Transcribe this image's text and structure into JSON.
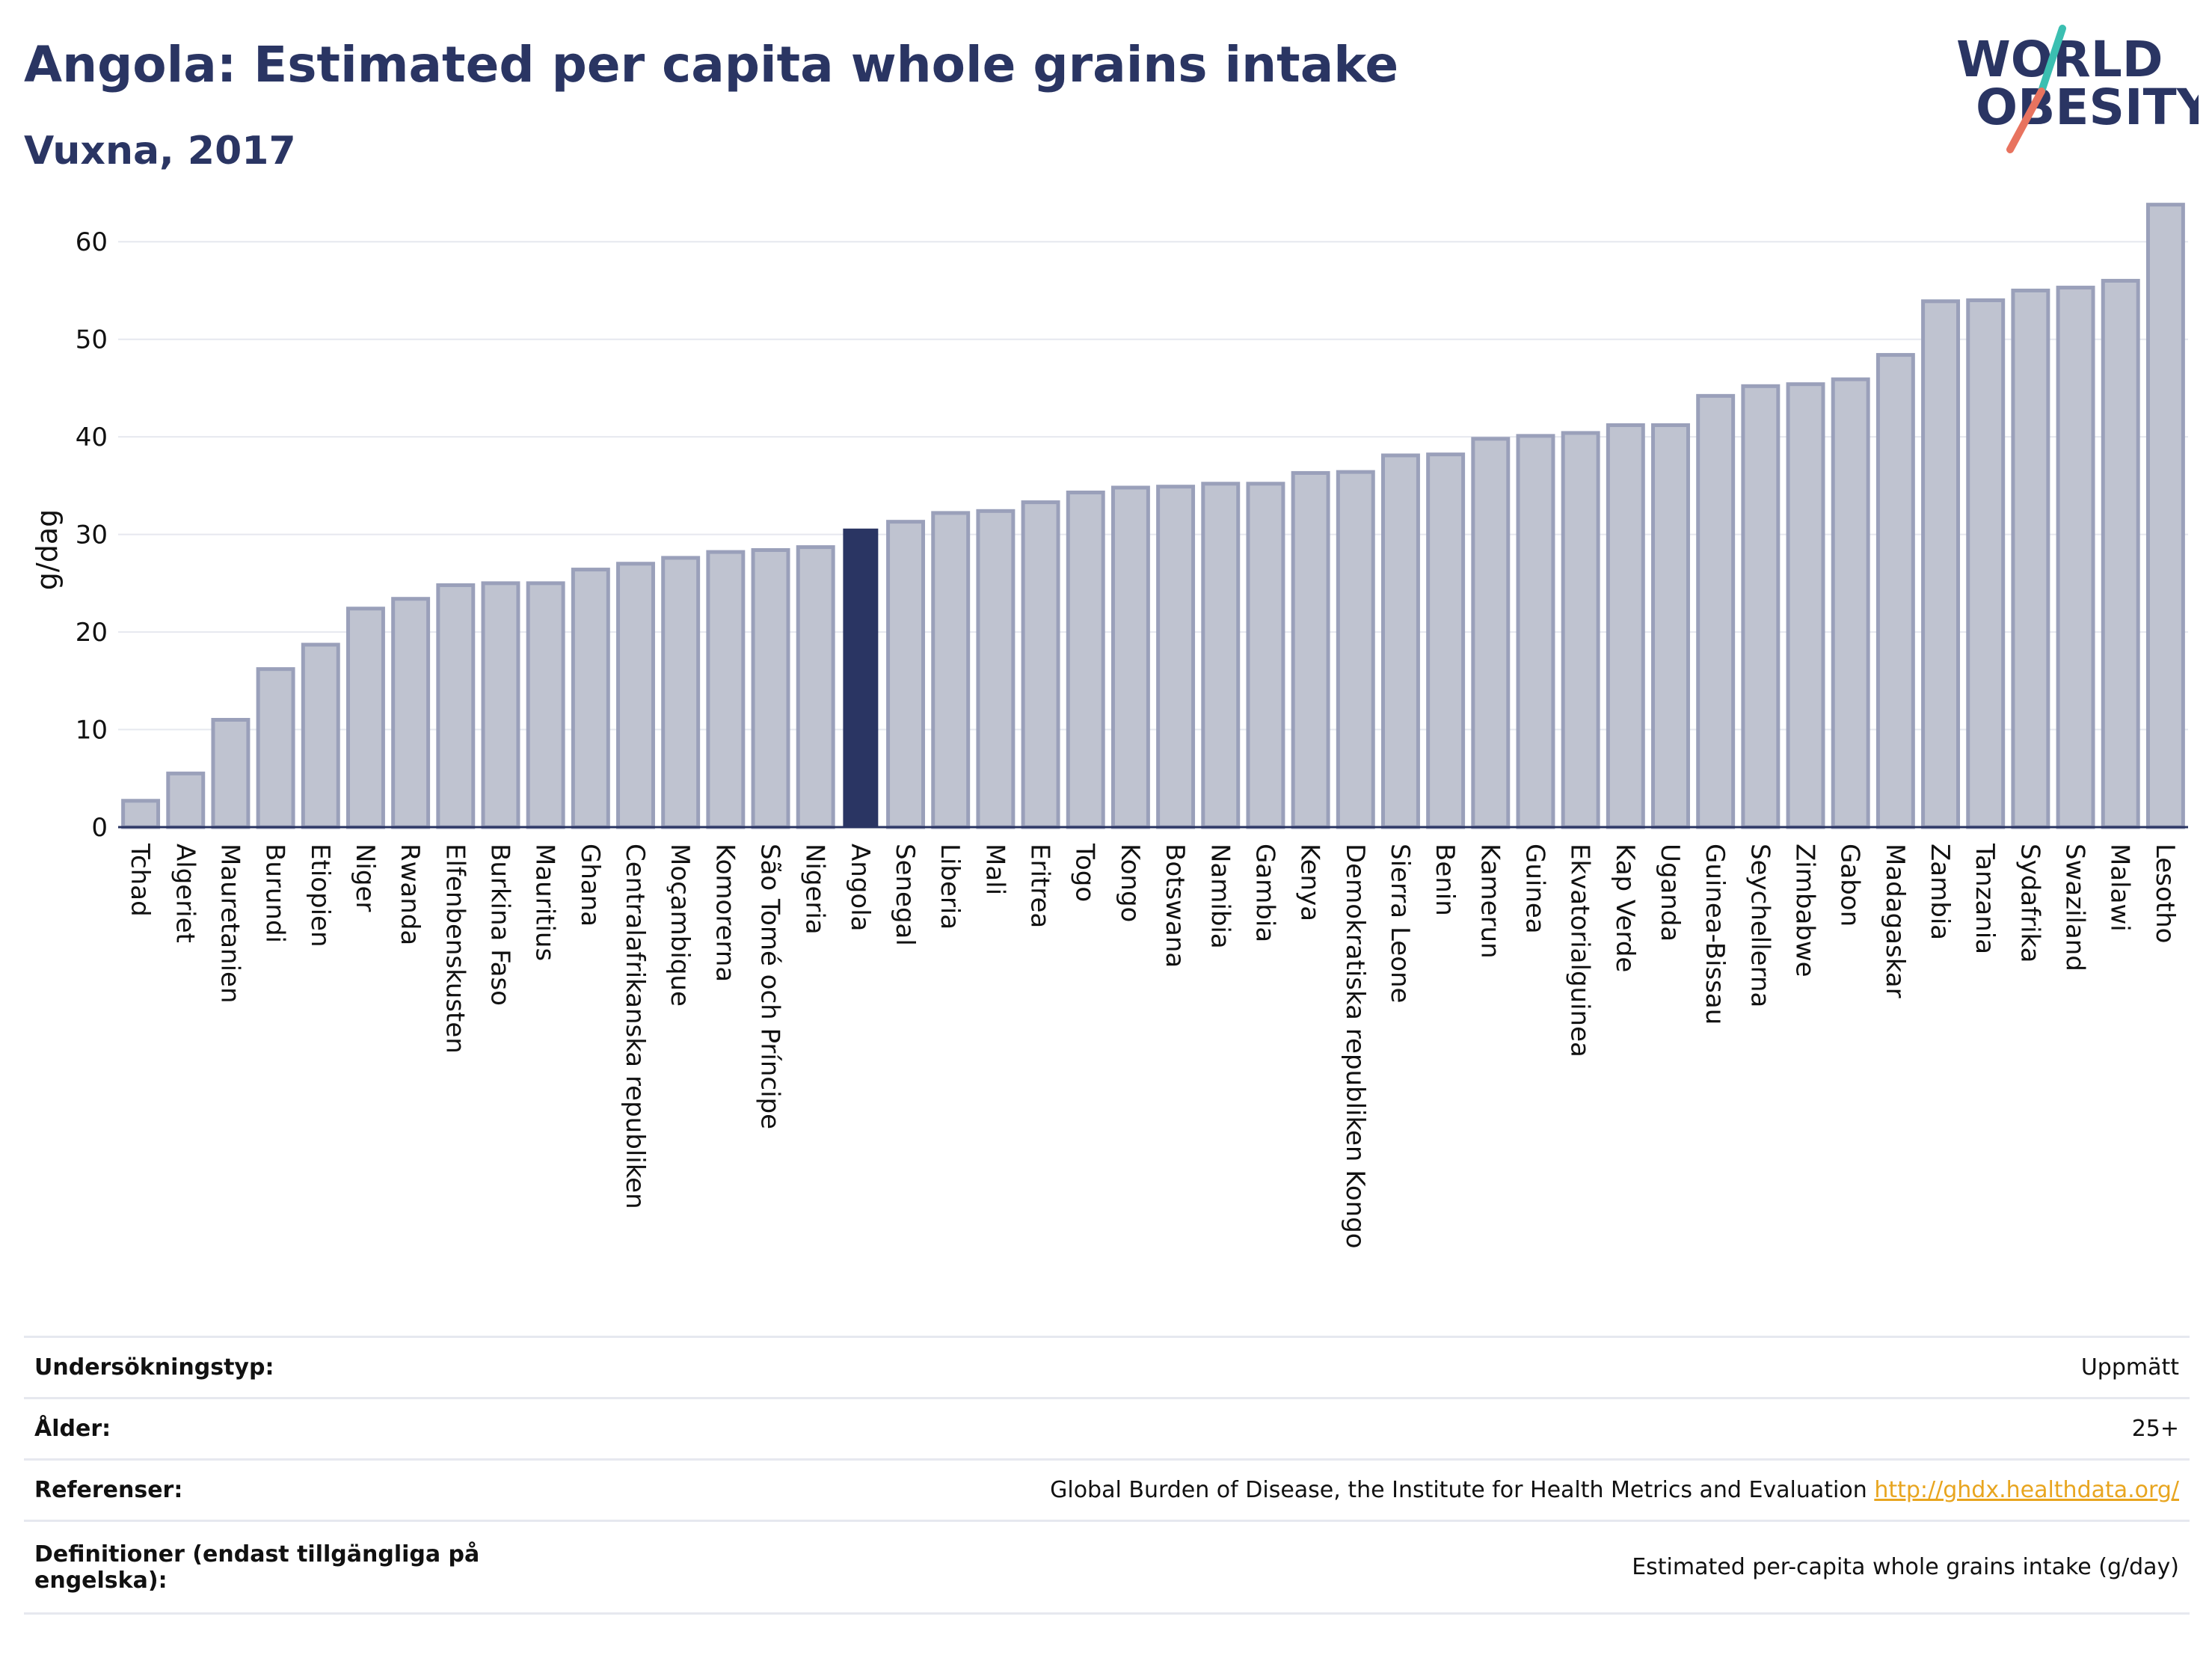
{
  "header": {
    "title": "Angola: Estimated per capita whole grains intake",
    "subtitle": "Vuxna, 2017"
  },
  "logo": {
    "line1": "WORLD",
    "line2": "OBESITY"
  },
  "colors": {
    "title": "#2a3563",
    "bar_default": "#bfc3d0",
    "bar_border": "#9aa0ba",
    "bar_highlight": "#2a3563",
    "grid": "#e6e8ef",
    "logo_teal": "#3bbfb1",
    "logo_coral": "#e8735f",
    "link": "#e8a51f"
  },
  "chart_data": {
    "type": "bar",
    "title": "Angola: Estimated per capita whole grains intake",
    "subtitle": "Vuxna, 2017",
    "xlabel": "",
    "ylabel": "g/dag",
    "ylim": [
      0,
      65
    ],
    "yticks": [
      0,
      10,
      20,
      30,
      40,
      50,
      60
    ],
    "grid": true,
    "highlight": "Angola",
    "categories": [
      "Tchad",
      "Algeriet",
      "Mauretanien",
      "Burundi",
      "Etiopien",
      "Niger",
      "Rwanda",
      "Elfenbenskusten",
      "Burkina Faso",
      "Mauritius",
      "Ghana",
      "Centralafrikanska republiken",
      "Moçambique",
      "Komorerna",
      "São Tomé och Príncipe",
      "Nigeria",
      "Angola",
      "Senegal",
      "Liberia",
      "Mali",
      "Eritrea",
      "Togo",
      "Kongo",
      "Botswana",
      "Namibia",
      "Gambia",
      "Kenya",
      "Demokratiska republiken Kongo",
      "Sierra Leone",
      "Benin",
      "Kamerun",
      "Guinea",
      "Ekvatorialguinea",
      "Kap Verde",
      "Uganda",
      "Guinea-Bissau",
      "Seychellerna",
      "Zimbabwe",
      "Gabon",
      "Madagaskar",
      "Zambia",
      "Tanzania",
      "Sydafrika",
      "Swaziland",
      "Malawi",
      "Lesotho"
    ],
    "values": [
      2.7,
      5.5,
      11.0,
      16.2,
      18.7,
      22.4,
      23.4,
      24.8,
      25.0,
      25.0,
      26.4,
      27.0,
      27.6,
      28.2,
      28.4,
      28.7,
      30.6,
      31.3,
      32.2,
      32.4,
      33.3,
      34.3,
      34.8,
      34.9,
      35.2,
      35.2,
      36.3,
      36.4,
      38.1,
      38.2,
      39.8,
      40.1,
      40.4,
      41.2,
      41.2,
      44.2,
      45.2,
      45.4,
      45.9,
      48.4,
      53.9,
      54.0,
      55.0,
      55.3,
      56.0,
      63.8
    ]
  },
  "meta": [
    {
      "label": "Undersökningstyp:",
      "value": "Uppmätt"
    },
    {
      "label": "Ålder:",
      "value": "25+"
    },
    {
      "label": "Referenser:",
      "value": "Global Burden of Disease, the Institute for Health Metrics and Evaluation",
      "link": "http://ghdx.healthdata.org/"
    },
    {
      "label": "Definitioner (endast tillgängliga på engelska):",
      "value": "Estimated per-capita whole grains intake (g/day)"
    }
  ]
}
